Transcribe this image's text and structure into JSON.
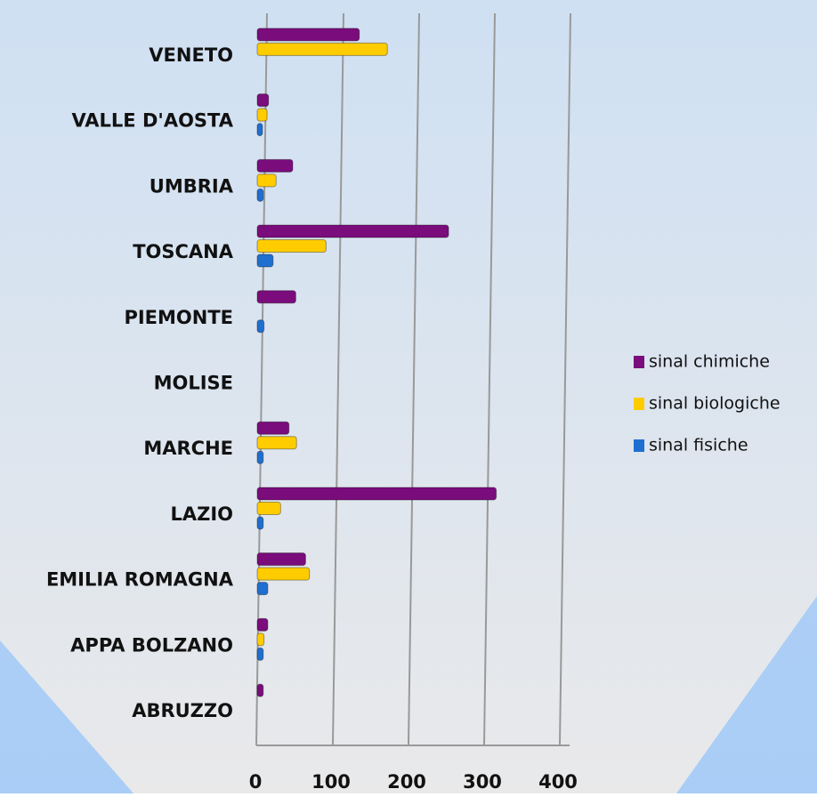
{
  "chart_data": {
    "type": "bar",
    "orientation": "horizontal",
    "categories": [
      "ABRUZZO",
      "APPA BOLZANO",
      "EMILIA ROMAGNA",
      "LAZIO",
      "MARCHE",
      "MOLISE",
      "PIEMONTE",
      "TOSCANA",
      "UMBRIA",
      "VALLE D'AOSTA",
      "VENETO"
    ],
    "series": [
      {
        "name": "sinal chimiche",
        "color": "#7a0c7c",
        "values": [
          8,
          14,
          64,
          316,
          42,
          0,
          51,
          253,
          47,
          15,
          135
        ]
      },
      {
        "name": "sinal biologiche",
        "color": "#ffcc00",
        "values": [
          0,
          9,
          69,
          31,
          52,
          0,
          0,
          91,
          25,
          13,
          172
        ]
      },
      {
        "name": "sinal fisiche",
        "color": "#1f6fd1",
        "values": [
          0,
          8,
          14,
          8,
          8,
          0,
          9,
          21,
          8,
          7,
          0
        ]
      }
    ],
    "xlim": [
      0,
      400
    ],
    "xticks": [
      0,
      100,
      200,
      300,
      400
    ],
    "grid": true,
    "legend": "right"
  }
}
